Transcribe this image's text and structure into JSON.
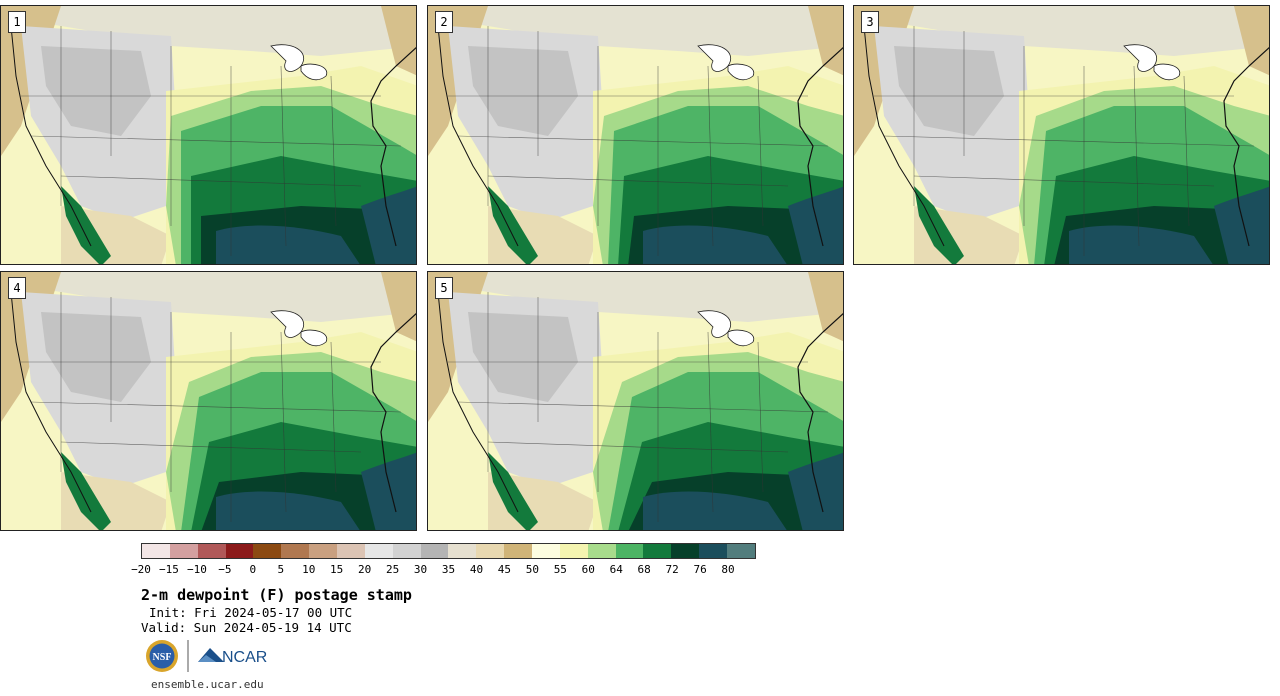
{
  "panels": [
    {
      "label": "1"
    },
    {
      "label": "2"
    },
    {
      "label": "3"
    },
    {
      "label": "4"
    },
    {
      "label": "5"
    }
  ],
  "colorbar": {
    "colors": [
      "#f3e6e6",
      "#d4a0a0",
      "#b05858",
      "#8c1b1b",
      "#8c4a12",
      "#b07850",
      "#c9a080",
      "#dcc4b4",
      "#e6e6e6",
      "#d2d2d2",
      "#b4b4b4",
      "#e6e0d0",
      "#e8d8b0",
      "#d0b478",
      "#fdfde0",
      "#f4f4b0",
      "#a8dc8c",
      "#4cb464",
      "#137a3c",
      "#06402a",
      "#1b4e5c",
      "#527d7d"
    ],
    "tick_labels": [
      "−20",
      "−15",
      "−10",
      "−5",
      "0",
      "5",
      "10",
      "15",
      "20",
      "25",
      "30",
      "35",
      "40",
      "45",
      "50",
      "55",
      "60",
      "64",
      "68",
      "72",
      "76",
      "80"
    ]
  },
  "title": "2-m dewpoint (F) postage stamp",
  "init": "Init: Fri 2024-05-17 00 UTC",
  "valid": "Valid: Sun 2024-05-19 14 UTC",
  "logo": {
    "nsf_text": "NSF",
    "ncar_text": "NCAR",
    "url": "ensemble.ucar.edu"
  }
}
